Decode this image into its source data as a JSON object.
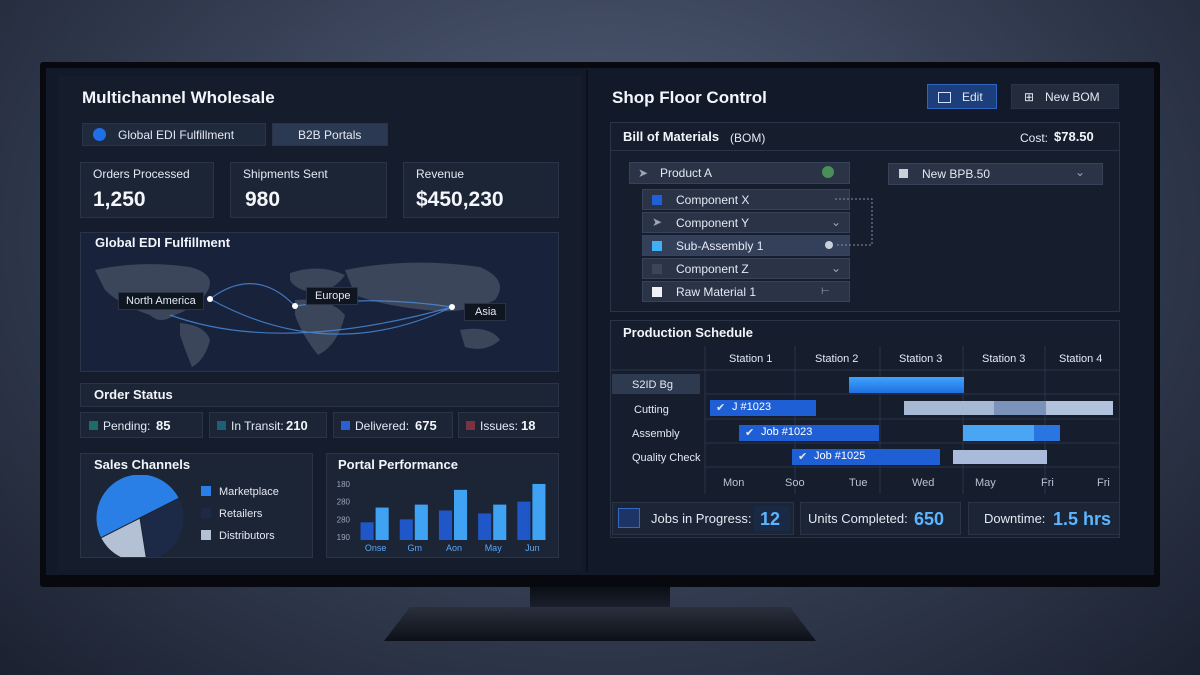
{
  "left": {
    "title": "Multichannel Wholesale",
    "tabs": [
      "Global EDI Fulfillment",
      "B2B Portals"
    ],
    "kpis": [
      {
        "label": "Orders Processed",
        "value": "1,250"
      },
      {
        "label": "Shipments Sent",
        "value": "980"
      },
      {
        "label": "Revenue",
        "value": "$450,230"
      }
    ],
    "map": {
      "title": "Global EDI Fulfillment",
      "labels": [
        "North America",
        "Europe",
        "Asia"
      ]
    },
    "order_status": {
      "title": "Order Status",
      "items": [
        {
          "label": "Pending:",
          "value": 85
        },
        {
          "label": "In Transit:",
          "value": 210
        },
        {
          "label": "Delivered:",
          "value": 675
        },
        {
          "label": "Issues:",
          "value": 18
        }
      ]
    }
  },
  "chart_data": [
    {
      "type": "pie",
      "title": "Sales Channels",
      "categories": [
        "Marketplace",
        "Retailers",
        "Distributors"
      ],
      "values": [
        50,
        30,
        20
      ],
      "colors": [
        "#2a7fe6",
        "#1c2a48",
        "#b4c0d4"
      ]
    },
    {
      "type": "bar",
      "title": "Portal Performance",
      "categories": [
        "Onse",
        "Gm",
        "Aon",
        "May",
        "Jun"
      ],
      "y_axis_labels": [
        "180",
        "280",
        "280",
        "190"
      ],
      "ylim": [
        0,
        100
      ],
      "series": [
        {
          "color": "#1f56c8",
          "values": [
            30,
            35,
            50,
            45,
            65
          ]
        },
        {
          "color": "#3fa2f2",
          "values": [
            55,
            60,
            85,
            60,
            95
          ]
        }
      ]
    }
  ],
  "right": {
    "title": "Shop Floor Control",
    "buttons": [
      "Edit",
      "New BOM"
    ],
    "bom": {
      "title": "Bill of Materials",
      "suffix": "(BOM)",
      "cost_label": "Cost:",
      "cost": "$78.50",
      "items": [
        "Product A",
        "Component X",
        "Component Y",
        "Sub-Assembly 1",
        "Component Z",
        "Raw Material 1"
      ],
      "dropdown": "New BPB.50"
    },
    "schedule": {
      "title": "Production Schedule",
      "columns": [
        "Station 1",
        "Station 2",
        "Station 3",
        "Station 3",
        "Station 4"
      ],
      "rows": [
        "S2ID Bg",
        "Cutting",
        "Assembly",
        "Quality Check"
      ],
      "days": [
        "Mon",
        "Soo",
        "Tue",
        "Wed",
        "May",
        "Fri",
        "Fri"
      ],
      "jobs": [
        "J #1023",
        "Job #1023",
        "Job #1025"
      ]
    },
    "stats": [
      {
        "label": "Jobs in Progress:",
        "value": "12"
      },
      {
        "label": "Units Completed:",
        "value": "650"
      },
      {
        "label": "Downtime:",
        "value": "1.5 hrs"
      }
    ]
  }
}
